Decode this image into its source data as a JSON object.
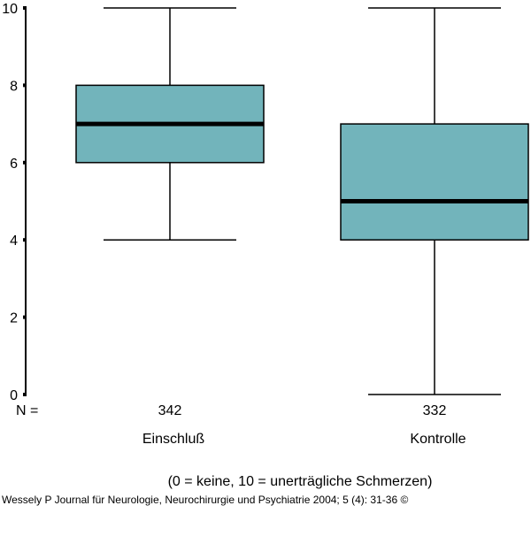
{
  "chart_data": {
    "type": "boxplot",
    "ylim": [
      0,
      10
    ],
    "yticks": [
      0,
      2,
      4,
      6,
      8,
      10
    ],
    "n_label": "N =",
    "categories": [
      "Einschluß",
      "Kontrolle"
    ],
    "n_values": [
      "342",
      "332"
    ],
    "boxes": [
      {
        "category": "Einschluß",
        "n": "342",
        "min": 4,
        "q1": 6,
        "median": 7,
        "q3": 8,
        "max": 10
      },
      {
        "category": "Kontrolle",
        "n": "332",
        "min": 0,
        "q1": 4,
        "median": 5,
        "q3": 7,
        "max": 10
      }
    ],
    "box_color": "#72b4bb",
    "scale_note": "(0 = keine, 10 = unerträgliche Schmerzen)"
  },
  "credit": "Wessely P Journal für Neurologie, Neurochirurgie und Psychiatrie 2004; 5 (4): 31-36 ©"
}
